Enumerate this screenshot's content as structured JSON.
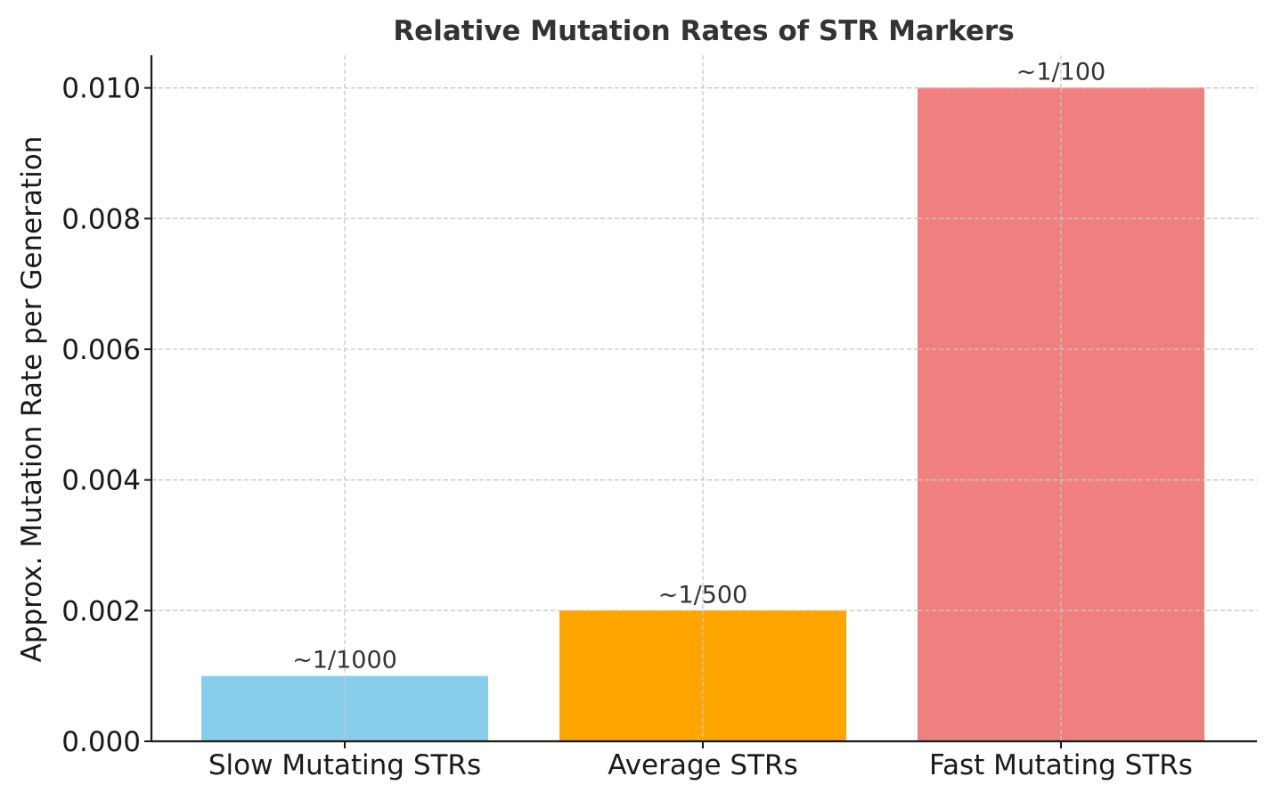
{
  "chart_data": {
    "type": "bar",
    "title": "Relative Mutation Rates of STR Markers",
    "xlabel": "",
    "ylabel": "Approx. Mutation Rate per Generation",
    "categories": [
      "Slow Mutating STRs",
      "Average STRs",
      "Fast Mutating STRs"
    ],
    "values": [
      0.001,
      0.002,
      0.01
    ],
    "data_labels": [
      "~1/1000",
      "~1/500",
      "~1/100"
    ],
    "colors": [
      "#87ceeb",
      "#ffa500",
      "#f08080"
    ],
    "ylim": [
      0,
      0.0105
    ],
    "yticks": [
      0.0,
      0.002,
      0.004,
      0.006,
      0.008,
      0.01
    ],
    "ytick_labels": [
      "0.000",
      "0.002",
      "0.004",
      "0.006",
      "0.008",
      "0.010"
    ],
    "grid": true,
    "legend": "none"
  }
}
